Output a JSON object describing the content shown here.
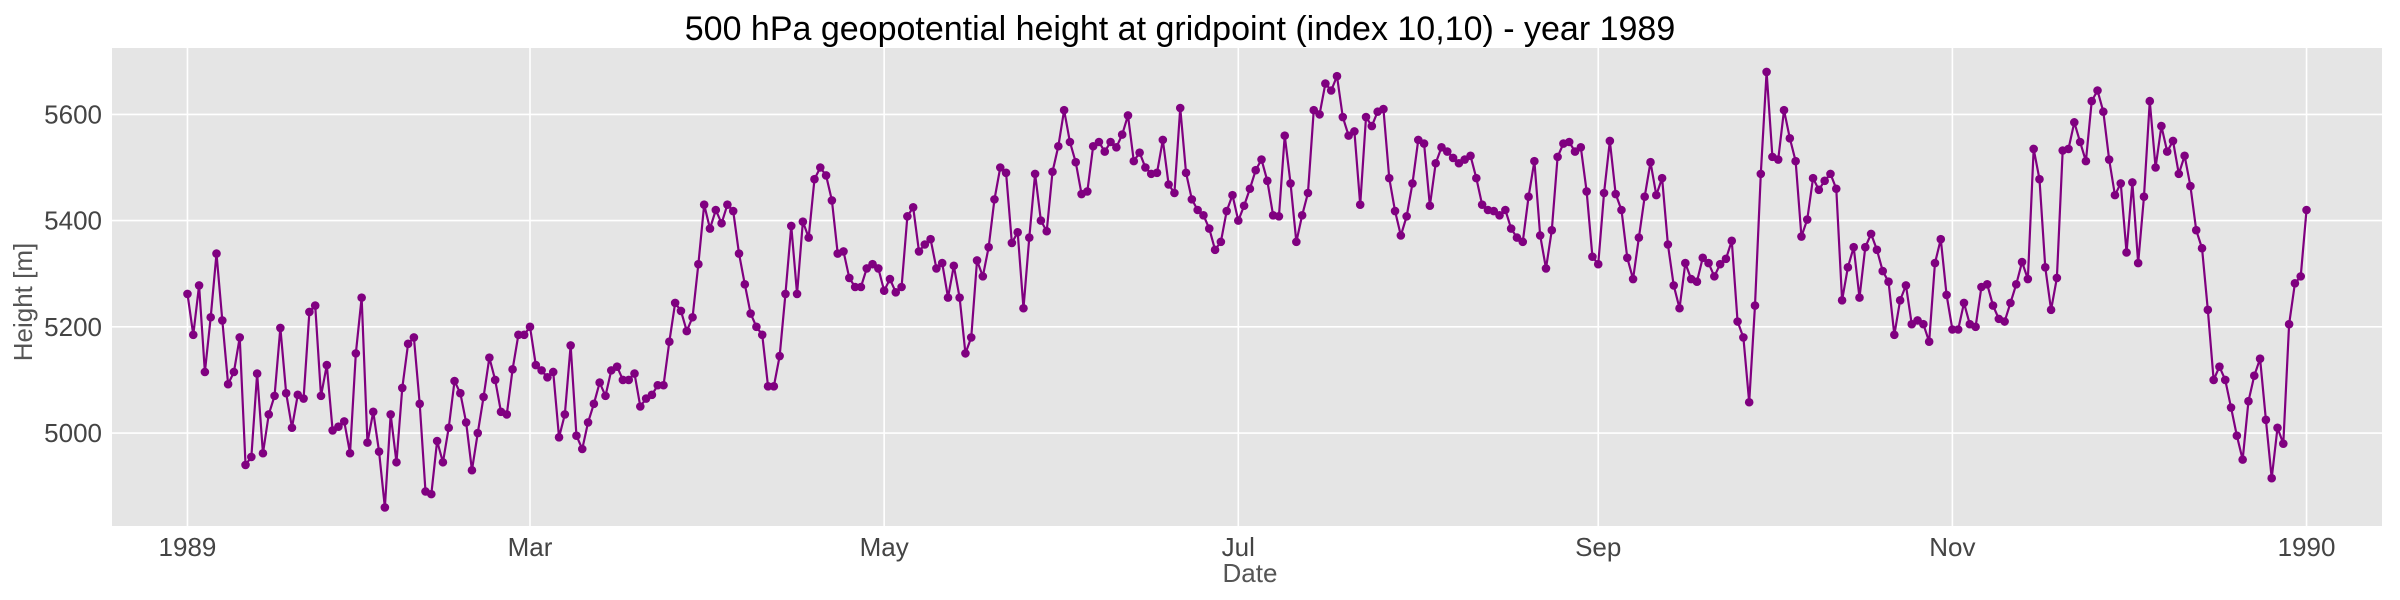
{
  "chart_data": {
    "type": "line",
    "title": "500 hPa geopotential height at gridpoint (index 10,10) - year 1989",
    "xlabel": "Date",
    "ylabel": "Height [m]",
    "xlim": [
      "1988-12-19",
      "1990-01-14"
    ],
    "ylim": [
      4825,
      5725
    ],
    "x_ticks": [
      {
        "value": "1989-01-01",
        "label": "1989"
      },
      {
        "value": "1989-03-01",
        "label": "Mar"
      },
      {
        "value": "1989-05-01",
        "label": "May"
      },
      {
        "value": "1989-07-01",
        "label": "Jul"
      },
      {
        "value": "1989-09-01",
        "label": "Sep"
      },
      {
        "value": "1989-11-01",
        "label": "Nov"
      },
      {
        "value": "1990-01-01",
        "label": "1990"
      }
    ],
    "y_ticks": [
      5000,
      5200,
      5400,
      5600
    ],
    "grid": true,
    "background": "#e5e5e5",
    "series_color": "#800080",
    "series": [
      {
        "start_date": "1989-01-01",
        "step_days": 1,
        "values": [
          5262,
          5185,
          5278,
          5115,
          5218,
          5338,
          5212,
          5092,
          5115,
          5180,
          4940,
          4955,
          5112,
          4962,
          5035,
          5070,
          5198,
          5075,
          5010,
          5072,
          5065,
          5228,
          5240,
          5070,
          5128,
          5005,
          5012,
          5022,
          4962,
          5150,
          5255,
          4982,
          5040,
          4965,
          4860,
          5035,
          4945,
          5085,
          5168,
          5180,
          5055,
          4890,
          4885,
          4985,
          4945,
          5010,
          5098,
          5075,
          5020,
          4930,
          5000,
          5068,
          5142,
          5100,
          5040,
          5035,
          5120,
          5185,
          5185,
          5200,
          5128,
          5118,
          5105,
          5115,
          4992,
          5035,
          5165,
          4995,
          4970,
          5020,
          5055,
          5095,
          5070,
          5118,
          5125,
          5100,
          5100,
          5112,
          5050,
          5065,
          5072,
          5090,
          5090,
          5172,
          5245,
          5230,
          5192,
          5218,
          5318,
          5430,
          5385,
          5420,
          5395,
          5430,
          5418,
          5338,
          5280,
          5225,
          5200,
          5185,
          5088,
          5088,
          5145,
          5262,
          5390,
          5262,
          5398,
          5368,
          5478,
          5500,
          5485,
          5438,
          5338,
          5342,
          5292,
          5275,
          5275,
          5310,
          5318,
          5310,
          5268,
          5290,
          5265,
          5275,
          5408,
          5425,
          5342,
          5355,
          5365,
          5310,
          5320,
          5255,
          5315,
          5255,
          5150,
          5180,
          5325,
          5295,
          5350,
          5440,
          5500,
          5490,
          5358,
          5378,
          5235,
          5368,
          5488,
          5400,
          5380,
          5492,
          5540,
          5608,
          5548,
          5510,
          5450,
          5455,
          5540,
          5548,
          5530,
          5548,
          5538,
          5562,
          5598,
          5512,
          5528,
          5500,
          5488,
          5490,
          5552,
          5468,
          5452,
          5612,
          5490,
          5440,
          5420,
          5410,
          5385,
          5345,
          5360,
          5418,
          5448,
          5400,
          5428,
          5460,
          5495,
          5515,
          5475,
          5410,
          5408,
          5560,
          5470,
          5360,
          5410,
          5452,
          5608,
          5600,
          5658,
          5645,
          5672,
          5595,
          5560,
          5568,
          5430,
          5595,
          5578,
          5605,
          5610,
          5480,
          5418,
          5372,
          5408,
          5470,
          5552,
          5545,
          5428,
          5508,
          5538,
          5530,
          5518,
          5508,
          5515,
          5522,
          5480,
          5430,
          5420,
          5418,
          5410,
          5420,
          5385,
          5368,
          5360,
          5445,
          5512,
          5372,
          5310,
          5382,
          5520,
          5545,
          5548,
          5530,
          5538,
          5455,
          5332,
          5318,
          5452,
          5550,
          5450,
          5420,
          5330,
          5290,
          5368,
          5445,
          5510,
          5448,
          5480,
          5355,
          5278,
          5235,
          5320,
          5290,
          5285,
          5330,
          5320,
          5295,
          5318,
          5328,
          5362,
          5210,
          5180,
          5058,
          5240,
          5488,
          5680,
          5520,
          5515,
          5608,
          5555,
          5512,
          5370,
          5402,
          5480,
          5458,
          5475,
          5488,
          5460,
          5250,
          5312,
          5350,
          5255,
          5350,
          5375,
          5345,
          5305,
          5285,
          5185,
          5250,
          5278,
          5205,
          5212,
          5205,
          5172,
          5320,
          5365,
          5260,
          5195,
          5195,
          5245,
          5205,
          5200,
          5275,
          5280,
          5240,
          5215,
          5210,
          5245,
          5280,
          5322,
          5290,
          5535,
          5478,
          5312,
          5232,
          5292,
          5532,
          5535,
          5585,
          5548,
          5512,
          5625,
          5645,
          5605,
          5515,
          5448,
          5470,
          5340,
          5472,
          5320,
          5445,
          5625,
          5500,
          5578,
          5530,
          5550,
          5488,
          5522,
          5465,
          5382,
          5348,
          5232,
          5100,
          5125,
          5100,
          5048,
          4995,
          4950,
          5060,
          5108,
          5140,
          5025,
          4915,
          5010,
          4980,
          5205,
          5282,
          5295,
          5420
        ]
      }
    ]
  }
}
